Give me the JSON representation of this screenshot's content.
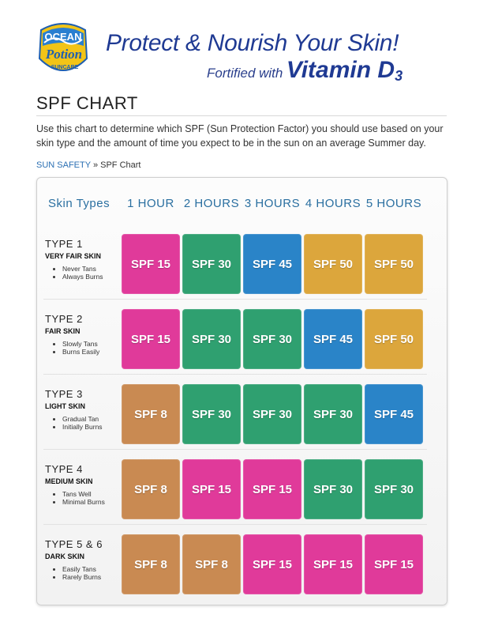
{
  "header": {
    "logo_line1": "OCEAN",
    "logo_line2": "Potion",
    "logo_line3": "SUNCARE",
    "headline": "Protect & Nourish Your Skin!",
    "fortified": "Fortified with",
    "vitamin": "Vitamin D",
    "vitamin_sub": "3"
  },
  "page": {
    "title": "SPF CHART",
    "intro": "Use this chart to determine which SPF (Sun Protection Factor) you should use based on your skin type and the amount of time you expect to be in the sun on an average Summer day.",
    "breadcrumb_link": "SUN SAFETY",
    "breadcrumb_sep": "»",
    "breadcrumb_current": "SPF Chart"
  },
  "colors": {
    "pink": "#e03a9a",
    "green": "#2fa070",
    "blue": "#2a84c8",
    "gold": "#dca63c",
    "tan": "#c98a52",
    "heading_blue": "#2a6fa0",
    "tagline_blue": "#1f3a93"
  },
  "chart": {
    "skin_header": "Skin Types",
    "columns": [
      "1 HOUR",
      "2 HOURS",
      "3 HOURS",
      "4 HOURS",
      "5 HOURS"
    ],
    "rows": [
      {
        "type": "TYPE 1",
        "skin": "VERY FAIR SKIN",
        "notes": [
          "Never Tans",
          "Always Burns"
        ],
        "cells": [
          {
            "label": "SPF 15",
            "color": "pink"
          },
          {
            "label": "SPF 30",
            "color": "green"
          },
          {
            "label": "SPF 45",
            "color": "blue"
          },
          {
            "label": "SPF 50",
            "color": "gold"
          },
          {
            "label": "SPF 50",
            "color": "gold"
          }
        ]
      },
      {
        "type": "TYPE 2",
        "skin": "FAIR SKIN",
        "notes": [
          "Slowly Tans",
          "Burns Easily"
        ],
        "cells": [
          {
            "label": "SPF 15",
            "color": "pink"
          },
          {
            "label": "SPF 30",
            "color": "green"
          },
          {
            "label": "SPF 30",
            "color": "green"
          },
          {
            "label": "SPF 45",
            "color": "blue"
          },
          {
            "label": "SPF 50",
            "color": "gold"
          }
        ]
      },
      {
        "type": "TYPE 3",
        "skin": "LIGHT SKIN",
        "notes": [
          "Gradual Tan",
          "Initially Burns"
        ],
        "cells": [
          {
            "label": "SPF 8",
            "color": "tan"
          },
          {
            "label": "SPF 30",
            "color": "green"
          },
          {
            "label": "SPF 30",
            "color": "green"
          },
          {
            "label": "SPF 30",
            "color": "green"
          },
          {
            "label": "SPF 45",
            "color": "blue"
          }
        ]
      },
      {
        "type": "TYPE 4",
        "skin": "MEDIUM SKIN",
        "notes": [
          "Tans Well",
          "Minimal Burns"
        ],
        "cells": [
          {
            "label": "SPF 8",
            "color": "tan"
          },
          {
            "label": "SPF 15",
            "color": "pink"
          },
          {
            "label": "SPF 15",
            "color": "pink"
          },
          {
            "label": "SPF 30",
            "color": "green"
          },
          {
            "label": "SPF 30",
            "color": "green"
          }
        ]
      },
      {
        "type": "TYPE 5 & 6",
        "skin": "DARK SKIN",
        "notes": [
          "Easily Tans",
          "Rarely Burns"
        ],
        "cells": [
          {
            "label": "SPF 8",
            "color": "tan"
          },
          {
            "label": "SPF 8",
            "color": "tan"
          },
          {
            "label": "SPF 15",
            "color": "pink"
          },
          {
            "label": "SPF 15",
            "color": "pink"
          },
          {
            "label": "SPF 15",
            "color": "pink"
          }
        ]
      }
    ]
  }
}
